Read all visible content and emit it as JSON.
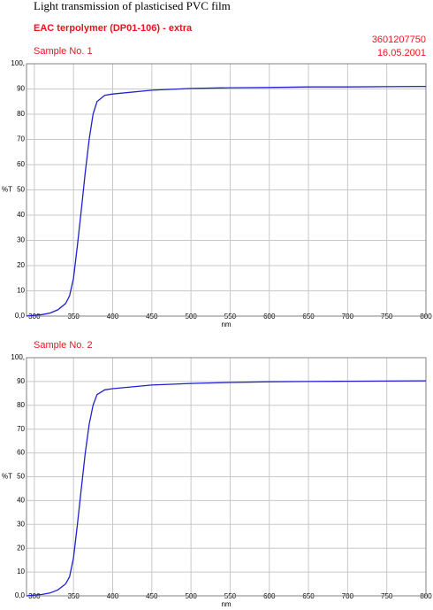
{
  "header": {
    "title": "Light transmission of plasticised PVC film",
    "subtitle": "EAC terpolymer (DP01-106) - extra",
    "code": "3601207750",
    "date": "16.05.2001"
  },
  "chart_data": [
    {
      "type": "line",
      "title": "Sample No. 1",
      "x_label": "nm",
      "y_label": "%T",
      "color": "#2020d0",
      "grid": true,
      "x": [
        290,
        300,
        310,
        320,
        330,
        340,
        345,
        350,
        355,
        360,
        365,
        370,
        375,
        380,
        390,
        400,
        450,
        500,
        550,
        600,
        650,
        700,
        750,
        800
      ],
      "values": [
        0,
        0.3,
        0.6,
        1.2,
        2.5,
        5,
        8,
        15,
        28,
        42,
        57,
        70,
        80,
        85,
        87.5,
        88,
        89.5,
        90.2,
        90.5,
        90.6,
        90.8,
        90.8,
        90.9,
        91
      ],
      "xlim": [
        290,
        800
      ],
      "xticks": [
        300,
        350,
        400,
        450,
        500,
        550,
        600,
        650,
        700,
        750,
        800
      ],
      "ylim": [
        0,
        100
      ],
      "yticks": [
        {
          "value": 0,
          "label": "0,0"
        },
        10,
        20,
        30,
        40,
        50,
        60,
        70,
        80,
        90,
        {
          "value": 100,
          "label": "100,"
        }
      ]
    },
    {
      "type": "line",
      "title": "Sample No. 2",
      "x_label": "nm",
      "y_label": "%T",
      "color": "#2020d0",
      "grid": true,
      "x": [
        290,
        300,
        310,
        320,
        330,
        340,
        345,
        350,
        355,
        360,
        365,
        370,
        375,
        380,
        390,
        400,
        450,
        500,
        550,
        600,
        650,
        700,
        750,
        800
      ],
      "values": [
        0,
        0.3,
        0.6,
        1.2,
        2.5,
        5,
        8,
        16,
        30,
        45,
        60,
        72,
        80,
        84.5,
        86.5,
        87,
        88.5,
        89.2,
        89.6,
        89.9,
        90,
        90.1,
        90.2,
        90.3
      ],
      "xlim": [
        290,
        800
      ],
      "xticks": [
        300,
        350,
        400,
        450,
        500,
        550,
        600,
        650,
        700,
        750,
        800
      ],
      "ylim": [
        0,
        100
      ],
      "yticks": [
        {
          "value": 0,
          "label": "0,0"
        },
        10,
        20,
        30,
        40,
        50,
        60,
        70,
        80,
        90,
        {
          "value": 100,
          "label": "100,"
        }
      ]
    }
  ]
}
